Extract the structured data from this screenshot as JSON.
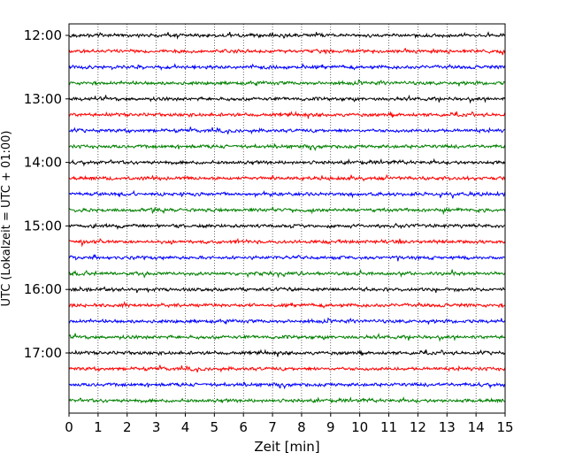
{
  "chart_data": {
    "type": "line",
    "title": "",
    "xlabel": "Zeit  [min]",
    "ylabel": "UTC (Lokalzeit = UTC + 01:00)",
    "xlim": [
      0,
      15
    ],
    "x_ticks": [
      "0",
      "1",
      "2",
      "3",
      "4",
      "5",
      "6",
      "7",
      "8",
      "9",
      "10",
      "11",
      "12",
      "13",
      "14",
      "15"
    ],
    "y_ticks": [
      "12:00",
      "13:00",
      "14:00",
      "15:00",
      "16:00",
      "17:00"
    ],
    "grid": "vertical dotted",
    "trace_interval_minutes": 15,
    "series": [
      {
        "start": "12:00",
        "color": "#000000"
      },
      {
        "start": "12:15",
        "color": "#ff0000"
      },
      {
        "start": "12:30",
        "color": "#0000ff"
      },
      {
        "start": "12:45",
        "color": "#008000"
      },
      {
        "start": "13:00",
        "color": "#000000"
      },
      {
        "start": "13:15",
        "color": "#ff0000"
      },
      {
        "start": "13:30",
        "color": "#0000ff"
      },
      {
        "start": "13:45",
        "color": "#008000"
      },
      {
        "start": "14:00",
        "color": "#000000"
      },
      {
        "start": "14:15",
        "color": "#ff0000"
      },
      {
        "start": "14:30",
        "color": "#0000ff"
      },
      {
        "start": "14:45",
        "color": "#008000"
      },
      {
        "start": "15:00",
        "color": "#000000"
      },
      {
        "start": "15:15",
        "color": "#ff0000"
      },
      {
        "start": "15:30",
        "color": "#0000ff"
      },
      {
        "start": "15:45",
        "color": "#008000"
      },
      {
        "start": "16:00",
        "color": "#000000"
      },
      {
        "start": "16:15",
        "color": "#ff0000"
      },
      {
        "start": "16:30",
        "color": "#0000ff"
      },
      {
        "start": "16:45",
        "color": "#008000"
      },
      {
        "start": "17:00",
        "color": "#000000"
      },
      {
        "start": "17:15",
        "color": "#ff0000"
      },
      {
        "start": "17:30",
        "color": "#0000ff"
      },
      {
        "start": "17:45",
        "color": "#008000"
      }
    ]
  }
}
